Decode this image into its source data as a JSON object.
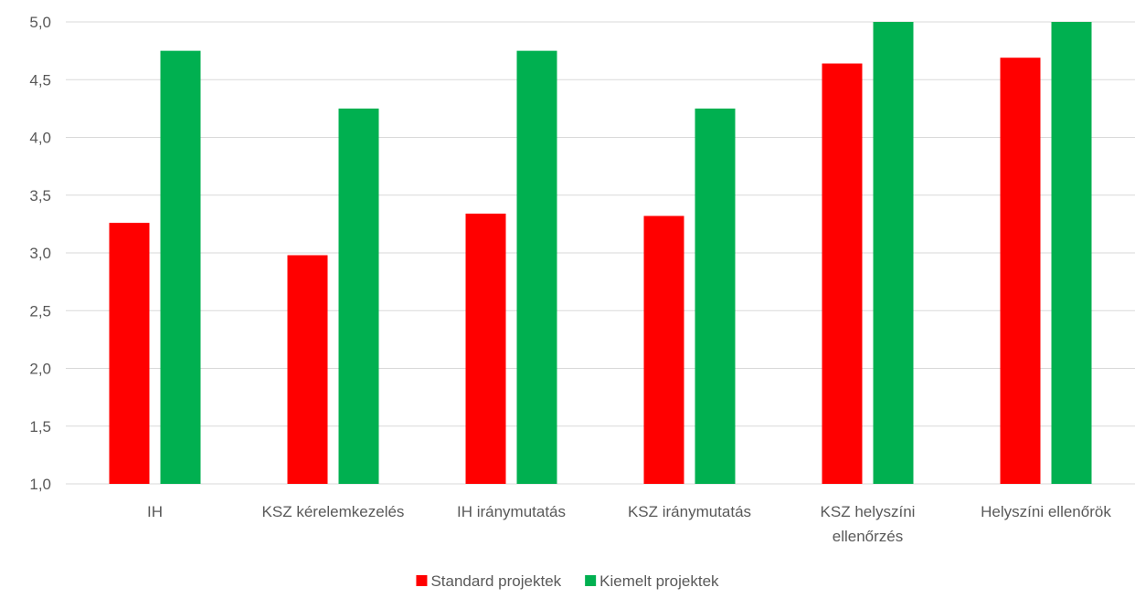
{
  "chart_data": {
    "type": "bar",
    "title": "",
    "xlabel": "",
    "ylabel": "",
    "ylim": [
      1.0,
      5.0
    ],
    "yticks": [
      "1,0",
      "1,5",
      "2,0",
      "2,5",
      "3,0",
      "3,5",
      "4,0",
      "4,5",
      "5,0"
    ],
    "ytick_values": [
      1.0,
      1.5,
      2.0,
      2.5,
      3.0,
      3.5,
      4.0,
      4.5,
      5.0
    ],
    "grid": true,
    "legend_position": "bottom",
    "categories": [
      [
        "IH"
      ],
      [
        "KSZ kérelemkezelés"
      ],
      [
        "IH iránymutatás"
      ],
      [
        "KSZ iránymutatás"
      ],
      [
        "KSZ helyszíni",
        "ellenőrzés"
      ],
      [
        "Helyszíni ellenőrök"
      ]
    ],
    "series": [
      {
        "name": "Standard projektek",
        "color": "#ff0000",
        "values": [
          3.26,
          2.98,
          3.34,
          3.32,
          4.64,
          4.69
        ]
      },
      {
        "name": "Kiemelt projektek",
        "color": "#00b050",
        "values": [
          4.75,
          4.25,
          4.75,
          4.25,
          5.0,
          5.0
        ]
      }
    ]
  }
}
